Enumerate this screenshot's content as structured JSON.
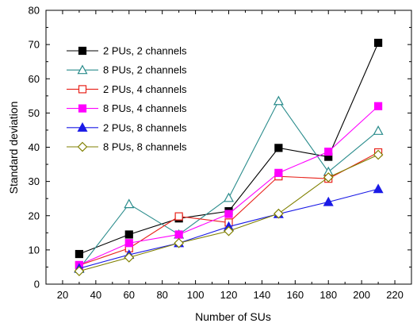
{
  "chart_data": {
    "type": "line",
    "title": "",
    "xlabel": "Number of SUs",
    "ylabel": "Standard deviation",
    "xlim": [
      10,
      230
    ],
    "ylim": [
      0,
      80
    ],
    "x_ticks": [
      20,
      40,
      60,
      80,
      100,
      120,
      140,
      160,
      180,
      200,
      220
    ],
    "y_ticks": [
      0,
      10,
      20,
      30,
      40,
      50,
      60,
      70,
      80
    ],
    "grid": false,
    "legend_position": "top-left",
    "x": [
      30,
      60,
      90,
      120,
      150,
      180,
      210
    ],
    "series": [
      {
        "name": "2 PUs, 2 channels",
        "color": "#000000",
        "marker": "square-filled",
        "values": [
          8.8,
          14.5,
          19.2,
          21.3,
          39.8,
          37.2,
          70.5
        ]
      },
      {
        "name": "8 PUs, 2 channels",
        "color": "#2a8c8c",
        "marker": "triangle-open",
        "values": [
          4.5,
          23.4,
          14.5,
          25.2,
          53.5,
          32.8,
          44.8
        ]
      },
      {
        "name": "2 PUs, 4 channels",
        "color": "#e8231b",
        "marker": "square-open",
        "values": [
          5.5,
          10.5,
          19.8,
          18.0,
          31.5,
          30.8,
          38.5
        ]
      },
      {
        "name": "8 PUs, 4 channels",
        "color": "#ff00ff",
        "marker": "square-filled",
        "values": [
          5.6,
          12.0,
          14.5,
          20.5,
          32.5,
          38.7,
          52.0
        ]
      },
      {
        "name": "2 PUs, 8 channels",
        "color": "#1a1ae6",
        "marker": "triangle-filled",
        "values": [
          4.6,
          8.6,
          12.0,
          16.8,
          20.5,
          24.0,
          27.8
        ]
      },
      {
        "name": "8 PUs, 8 channels",
        "color": "#808000",
        "marker": "diamond-open",
        "values": [
          3.8,
          7.8,
          12.0,
          15.5,
          20.6,
          31.2,
          37.8
        ]
      }
    ]
  }
}
